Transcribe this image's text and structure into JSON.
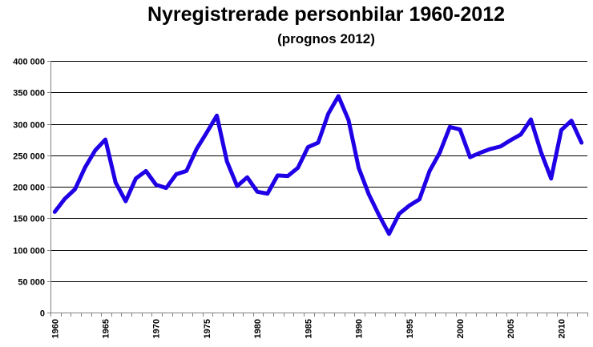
{
  "chart_data": {
    "type": "line",
    "title": "Nyregistrerade personbilar 1960-2012",
    "subtitle": "(prognos 2012)",
    "xlabel": "",
    "ylabel": "",
    "x": [
      1960,
      1961,
      1962,
      1963,
      1964,
      1965,
      1966,
      1967,
      1968,
      1969,
      1970,
      1971,
      1972,
      1973,
      1974,
      1975,
      1976,
      1977,
      1978,
      1979,
      1980,
      1981,
      1982,
      1983,
      1984,
      1985,
      1986,
      1987,
      1988,
      1989,
      1990,
      1991,
      1992,
      1993,
      1994,
      1995,
      1996,
      1997,
      1998,
      1999,
      2000,
      2001,
      2002,
      2003,
      2004,
      2005,
      2006,
      2007,
      2008,
      2009,
      2010,
      2011,
      2012
    ],
    "series": [
      {
        "values": [
          160000,
          181000,
          196000,
          231000,
          258000,
          275000,
          207000,
          177000,
          213000,
          225000,
          203000,
          198000,
          220000,
          225000,
          260000,
          286000,
          313000,
          240000,
          201000,
          215000,
          192000,
          189000,
          218000,
          217000,
          230000,
          263000,
          270000,
          316000,
          344000,
          306000,
          230000,
          188000,
          155000,
          125000,
          157000,
          170000,
          180000,
          225000,
          254000,
          295000,
          291000,
          247000,
          254000,
          260000,
          264000,
          274000,
          283000,
          307000,
          255000,
          213000,
          290000,
          305000,
          270000
        ],
        "color": "#1f00e6"
      }
    ],
    "ylim": [
      0,
      400000
    ],
    "xlim": [
      1960,
      2012
    ],
    "yticks": [
      0,
      50000,
      100000,
      150000,
      200000,
      250000,
      300000,
      350000,
      400000
    ],
    "ytick_labels": [
      "0",
      "50 000",
      "100 000",
      "150 000",
      "200 000",
      "250 000",
      "300 000",
      "350 000",
      "400 000"
    ],
    "xtick_labels": [
      "1960",
      "1965",
      "1970",
      "1975",
      "1980",
      "1985",
      "1990",
      "1995",
      "2000",
      "2005",
      "2010"
    ],
    "xtick_label_values": [
      1960,
      1965,
      1970,
      1975,
      1980,
      1985,
      1990,
      1995,
      2000,
      2005,
      2010
    ],
    "grid": true,
    "legend": "none"
  }
}
